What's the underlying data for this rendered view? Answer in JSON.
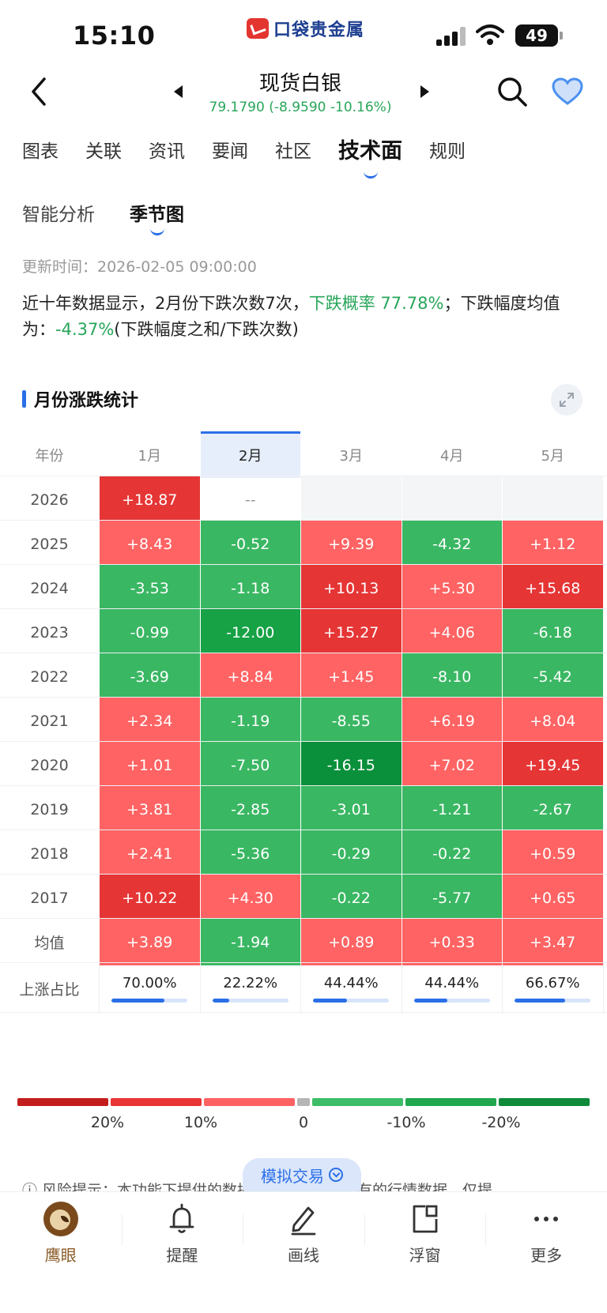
{
  "status_bar": {
    "time": "15:10",
    "brand": "口袋贵金属",
    "battery": "49"
  },
  "header": {
    "title": "现货白银",
    "quote": "79.1790 (-8.9590 -10.16%)"
  },
  "tabs": [
    {
      "label": "图表",
      "active": false
    },
    {
      "label": "关联",
      "active": false
    },
    {
      "label": "资讯",
      "active": false
    },
    {
      "label": "要闻",
      "active": false
    },
    {
      "label": "社区",
      "active": false
    },
    {
      "label": "技术面",
      "active": true
    },
    {
      "label": "规则",
      "active": false
    }
  ],
  "subtabs": [
    {
      "label": "智能分析",
      "active": false
    },
    {
      "label": "季节图",
      "active": true
    }
  ],
  "update_time": "更新时间：2026-02-05 09:00:00",
  "summary": {
    "part1": "近十年数据显示，2月份下跌次数7次，",
    "prob": "下跌概率 77.78%",
    "part2": "；下跌幅度均值为：",
    "avg": "-4.37%",
    "part3": "(下跌幅度之和/下跌次数)"
  },
  "section_title": "月份涨跌统计",
  "table": {
    "year_header": "年份",
    "months": [
      "1月",
      "2月",
      "3月",
      "4月",
      "5月"
    ],
    "highlight_month": "2月",
    "rows": [
      {
        "year": "2026",
        "values": [
          "+18.87",
          "--",
          "",
          "",
          ""
        ]
      },
      {
        "year": "2025",
        "values": [
          "+8.43",
          "-0.52",
          "+9.39",
          "-4.32",
          "+1.12"
        ]
      },
      {
        "year": "2024",
        "values": [
          "-3.53",
          "-1.18",
          "+10.13",
          "+5.30",
          "+15.68"
        ]
      },
      {
        "year": "2023",
        "values": [
          "-0.99",
          "-12.00",
          "+15.27",
          "+4.06",
          "-6.18"
        ]
      },
      {
        "year": "2022",
        "values": [
          "-3.69",
          "+8.84",
          "+1.45",
          "-8.10",
          "-5.42"
        ]
      },
      {
        "year": "2021",
        "values": [
          "+2.34",
          "-1.19",
          "-8.55",
          "+6.19",
          "+8.04"
        ]
      },
      {
        "year": "2020",
        "values": [
          "+1.01",
          "-7.50",
          "-16.15",
          "+7.02",
          "+19.45"
        ]
      },
      {
        "year": "2019",
        "values": [
          "+3.81",
          "-2.85",
          "-3.01",
          "-1.21",
          "-2.67"
        ]
      },
      {
        "year": "2018",
        "values": [
          "+2.41",
          "-5.36",
          "-0.29",
          "-0.22",
          "+0.59"
        ]
      },
      {
        "year": "2017",
        "values": [
          "+10.22",
          "+4.30",
          "-0.22",
          "-5.77",
          "+0.65"
        ]
      },
      {
        "year": "均值",
        "values": [
          "+3.89",
          "-1.94",
          "+0.89",
          "+0.33",
          "+3.47"
        ]
      }
    ],
    "ratio_label": "上涨占比",
    "ratios": [
      "70.00%",
      "22.22%",
      "44.44%",
      "44.44%",
      "66.67%"
    ],
    "ratio_fractions": [
      0.7,
      0.2222,
      0.4444,
      0.4444,
      0.6667
    ]
  },
  "legend": {
    "labels": [
      "20%",
      "10%",
      "0",
      "-10%",
      "-20%"
    ],
    "colors": [
      "#c41d1d",
      "#e83535",
      "#ff6262",
      "#b5b5b5",
      "#3ebd68",
      "#1fa84e",
      "#0f8a3a"
    ]
  },
  "risk_notice": "风险提示：本功能下提供的数据来源于外购或自有的行情数据，仅提",
  "sim_trade": "模拟交易",
  "bottom_nav": [
    {
      "label": "鹰眼",
      "icon": "eagle-icon",
      "active": true
    },
    {
      "label": "提醒",
      "icon": "bell-icon",
      "active": false
    },
    {
      "label": "画线",
      "icon": "pen-icon",
      "active": false
    },
    {
      "label": "浮窗",
      "icon": "float-window-icon",
      "active": false
    },
    {
      "label": "更多",
      "icon": "more-icon",
      "active": false
    }
  ],
  "colors": {
    "up_strong": "#e53535",
    "up": "#ff6363",
    "down": "#3ab763",
    "down_strong": "#16a245",
    "down_deep": "#0a8f3a",
    "accent": "#2a6fe8",
    "green_text": "#27a659"
  }
}
